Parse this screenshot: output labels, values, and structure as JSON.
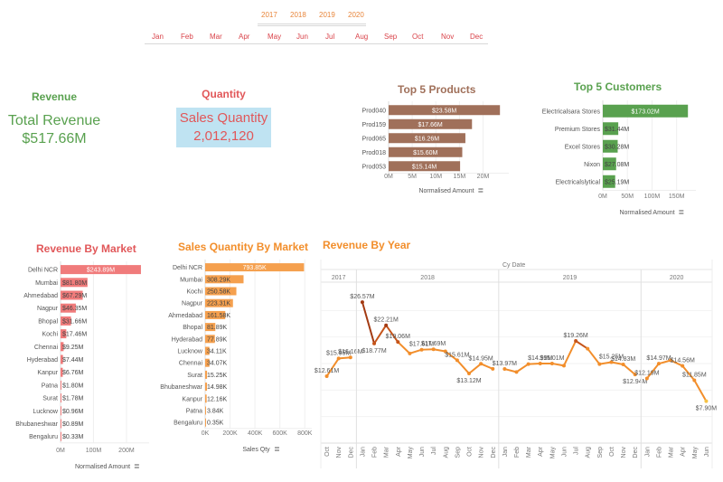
{
  "filters": {
    "years": [
      "2017",
      "2018",
      "2019",
      "2020"
    ],
    "months": [
      "Jan",
      "Feb",
      "Mar",
      "Apr",
      "May",
      "Jun",
      "Jul",
      "Aug",
      "Sep",
      "Oct",
      "Nov",
      "Dec"
    ],
    "year_color": "#e8853a",
    "month_color": "#d9434a"
  },
  "kpis": {
    "revenue": {
      "title": "Revenue",
      "label": "Total Revenue",
      "value": "$517.66M",
      "color": "#59a14f"
    },
    "quantity": {
      "title": "Quantity",
      "label": "Sales Quantity",
      "value": "2,012,120",
      "color": "#e15759",
      "bg": "#bfe3f2"
    }
  },
  "chart_data": [
    {
      "id": "top5products",
      "type": "bar",
      "orientation": "horizontal",
      "title": "Top 5 Products",
      "title_color": "#a0705a",
      "bar_color": "#a0705a",
      "categories": [
        "Prod040",
        "Prod159",
        "Prod065",
        "Prod018",
        "Prod053"
      ],
      "values": [
        23.58,
        17.66,
        16.26,
        15.6,
        15.14
      ],
      "labels": [
        "$23.58M",
        "$17.66M",
        "$16.26M",
        "$15.60M",
        "$15.14M"
      ],
      "xlabel": "Normalised Amount",
      "xticks": [
        0,
        5,
        10,
        15,
        20
      ],
      "xtick_labels": [
        "0M",
        "5M",
        "10M",
        "15M",
        "20M"
      ],
      "xlim": [
        0,
        24.5
      ],
      "unit": "M"
    },
    {
      "id": "top5customers",
      "type": "bar",
      "orientation": "horizontal",
      "title": "Top 5 Customers",
      "title_color": "#59a14f",
      "bar_color": "#59a14f",
      "categories": [
        "Electricalsara Stores",
        "Premium Stores",
        "Excel Stores",
        "Nixon",
        "Electricalslytical"
      ],
      "values": [
        173.02,
        31.44,
        30.28,
        27.08,
        25.19
      ],
      "labels": [
        "$173.02M",
        "$31.44M",
        "$30.28M",
        "$27.08M",
        "$25.19M"
      ],
      "xlabel": "Normalised Amount",
      "xticks": [
        0,
        50,
        100,
        150
      ],
      "xtick_labels": [
        "0M",
        "50M",
        "100M",
        "150M"
      ],
      "xlim": [
        0,
        180
      ],
      "unit": "M"
    },
    {
      "id": "revenuebymarket",
      "type": "bar",
      "orientation": "horizontal",
      "title": "Revenue By Market",
      "title_color": "#e15759",
      "bar_color": "#f07b7b",
      "categories": [
        "Delhi NCR",
        "Mumbai",
        "Ahmedabad",
        "Nagpur",
        "Bhopal",
        "Kochi",
        "Chennai",
        "Hyderabad",
        "Kanpur",
        "Patna",
        "Surat",
        "Lucknow",
        "Bhubaneshwar",
        "Bengaluru"
      ],
      "values": [
        243.89,
        81.8,
        67.29,
        46.35,
        31.66,
        17.46,
        9.25,
        7.44,
        6.76,
        1.8,
        1.78,
        0.96,
        0.89,
        0.33
      ],
      "labels": [
        "$243.89M",
        "$81.80M",
        "$67.29M",
        "$46.35M",
        "$31.66M",
        "$17.46M",
        "$9.25M",
        "$7.44M",
        "$6.76M",
        "$1.80M",
        "$1.78M",
        "$0.96M",
        "$0.89M",
        "$0.33M"
      ],
      "xlabel": "Normalised Amount",
      "xticks": [
        0,
        100,
        200
      ],
      "xtick_labels": [
        "0M",
        "100M",
        "200M"
      ],
      "xlim": [
        0,
        255
      ],
      "unit": "M"
    },
    {
      "id": "salesqtybymarket",
      "type": "bar",
      "orientation": "horizontal",
      "title": "Sales Quantity By Market",
      "title_color": "#f28e2b",
      "bar_color": "#f5a04e",
      "categories": [
        "Delhi NCR",
        "Mumbai",
        "Kochi",
        "Nagpur",
        "Ahmedabad",
        "Bhopal",
        "Hyderabad",
        "Lucknow",
        "Chennai",
        "Surat",
        "Bhubaneshwar",
        "Kanpur",
        "Patna",
        "Bengaluru"
      ],
      "values": [
        793.85,
        308.29,
        250.58,
        223.31,
        161.58,
        81.89,
        77.89,
        34.11,
        34.07,
        15.25,
        14.98,
        12.16,
        3.84,
        0.35
      ],
      "labels": [
        "793.85K",
        "308.29K",
        "250.58K",
        "223.31K",
        "161.58K",
        "81.89K",
        "77.89K",
        "34.11K",
        "34.07K",
        "15.25K",
        "14.98K",
        "12.16K",
        "3.84K",
        "0.35K"
      ],
      "xlabel": "Sales Qty",
      "xticks": [
        0,
        200,
        400,
        600,
        800
      ],
      "xtick_labels": [
        "0K",
        "200K",
        "400K",
        "600K",
        "800K"
      ],
      "xlim": [
        0,
        820
      ],
      "unit": "K"
    },
    {
      "id": "revenuebyyear",
      "type": "line",
      "title": "Revenue By Year",
      "title_color": "#f28e2b",
      "header": "Cy Date",
      "ylim": [
        0,
        30
      ],
      "grid": true,
      "color_low": "#f6c244",
      "color_mid": "#f28e2b",
      "color_high": "#a33a12",
      "years": [
        {
          "year": "2017",
          "months": [
            "Oct",
            "Nov",
            "Dec"
          ],
          "values": [
            12.61,
            15.95,
            16.16
          ],
          "labels": [
            "$12.61M",
            "$15.95M",
            "$16.16M"
          ]
        },
        {
          "year": "2018",
          "months": [
            "Jan",
            "Feb",
            "Mar",
            "Apr",
            "May",
            "Jun",
            "Jul",
            "Aug",
            "Sep",
            "Oct",
            "Nov",
            "Dec"
          ],
          "values": [
            26.57,
            18.77,
            22.21,
            19.06,
            16.9,
            17.61,
            17.69,
            17.3,
            15.61,
            13.12,
            14.95,
            14.0
          ],
          "labels": [
            "$26.57M",
            "$18.77M",
            "$22.21M",
            "$19.06M",
            "",
            "$17.61M",
            "$17.69M",
            "",
            "$15.61M",
            "$13.12M",
            "$14.95M",
            ""
          ]
        },
        {
          "year": "2019",
          "months": [
            "Jan",
            "Feb",
            "Mar",
            "Apr",
            "May",
            "Jun",
            "Jul",
            "Aug",
            "Sep",
            "Oct",
            "Nov",
            "Dec"
          ],
          "values": [
            13.97,
            13.4,
            14.9,
            14.99,
            15.01,
            14.6,
            19.26,
            17.8,
            14.9,
            15.25,
            14.83,
            12.94
          ],
          "labels": [
            "$13.97M",
            "",
            "",
            "$14.99M",
            "$15.01M",
            "",
            "$19.26M",
            "",
            "",
            "$15.25M",
            "$14.83M",
            "$12.94M"
          ]
        },
        {
          "year": "2020",
          "months": [
            "Jan",
            "Feb",
            "Mar",
            "Apr",
            "May",
            "Jun"
          ],
          "values": [
            12.19,
            14.97,
            15.6,
            14.56,
            11.85,
            7.9
          ],
          "labels": [
            "$12.19M",
            "$14.97M",
            "",
            "$14.56M",
            "$11.85M",
            "$7.90M"
          ]
        }
      ]
    }
  ]
}
